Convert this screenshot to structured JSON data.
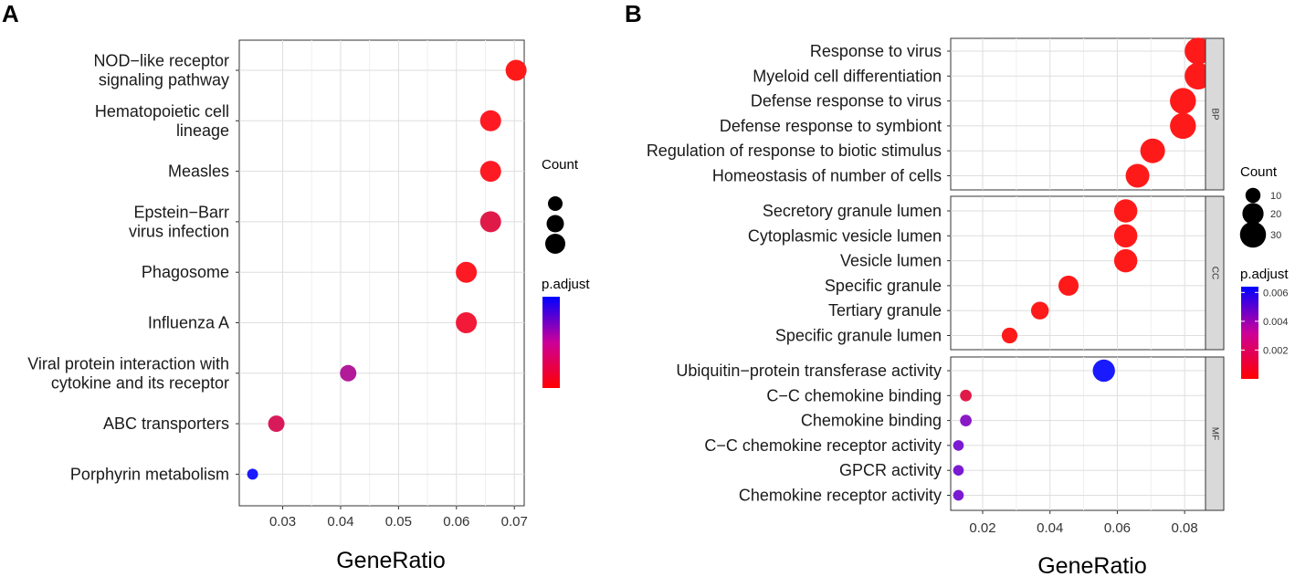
{
  "chart_data": [
    {
      "panel": "A",
      "type": "scatter",
      "xlabel": "GeneRatio",
      "ylabel": "",
      "xlim": [
        0.0225,
        0.0717
      ],
      "x_ticks": [
        "0.03",
        "0.04",
        "0.05",
        "0.06",
        "0.07"
      ],
      "x_tick_values": [
        0.03,
        0.04,
        0.05,
        0.06,
        0.07
      ],
      "grid": true,
      "points": [
        {
          "label": [
            "NOD−like receptor",
            "signaling pathway"
          ],
          "x": 0.0703,
          "count": 3,
          "padj": 0.0,
          "color": "#ff1a1a"
        },
        {
          "label": [
            "Hematopoietic cell",
            "lineage"
          ],
          "x": 0.0659,
          "count": 3,
          "padj": 0.0002,
          "color": "#fe1a22"
        },
        {
          "label": [
            "Measles"
          ],
          "x": 0.0659,
          "count": 3,
          "padj": 0.0002,
          "color": "#fe1a22"
        },
        {
          "label": [
            "Epstein−Barr",
            "virus infection"
          ],
          "x": 0.0659,
          "count": 3,
          "padj": 0.001,
          "color": "#e01a48"
        },
        {
          "label": [
            "Phagosome"
          ],
          "x": 0.0617,
          "count": 3,
          "padj": 0.0002,
          "color": "#fe1a22"
        },
        {
          "label": [
            "Influenza A"
          ],
          "x": 0.0617,
          "count": 3,
          "padj": 0.0006,
          "color": "#f21a38"
        },
        {
          "label": [
            "Viral protein interaction with",
            "cytokine and its receptor"
          ],
          "x": 0.0413,
          "count": 2,
          "padj": 0.003,
          "color": "#b21a9a"
        },
        {
          "label": [
            "ABC transporters"
          ],
          "x": 0.0289,
          "count": 2,
          "padj": 0.0012,
          "color": "#d81a5a"
        },
        {
          "label": [
            "Porphyrin metabolism"
          ],
          "x": 0.0248,
          "count": 1,
          "padj": 0.005,
          "color": "#1a1aff"
        }
      ],
      "legend": {
        "size_title": "Count",
        "color_title": "p.adjust",
        "color_low": "#ff0000",
        "color_high": "#0000ff",
        "placement": "right"
      }
    },
    {
      "panel": "B",
      "type": "scatter",
      "xlabel": "GeneRatio",
      "ylabel": "",
      "xlim": [
        0.0105,
        0.0862
      ],
      "x_ticks": [
        "0.02",
        "0.04",
        "0.06",
        "0.08"
      ],
      "x_tick_values": [
        0.02,
        0.04,
        0.06,
        0.08
      ],
      "grid": true,
      "facets": [
        {
          "name": "BP",
          "points": [
            {
              "label": "Response to virus",
              "x": 0.084,
              "count": 32,
              "padj": 0.0,
              "color": "#ff1a1a"
            },
            {
              "label": "Myeloid cell differentiation",
              "x": 0.084,
              "count": 32,
              "padj": 0.0,
              "color": "#ff1a1a"
            },
            {
              "label": "Defense response to virus",
              "x": 0.0795,
              "count": 30,
              "padj": 0.0,
              "color": "#ff1a1a"
            },
            {
              "label": "Defense response to symbiont",
              "x": 0.0795,
              "count": 30,
              "padj": 0.0,
              "color": "#ff1a1a"
            },
            {
              "label": "Regulation of response to biotic stimulus",
              "x": 0.0705,
              "count": 27,
              "padj": 0.0,
              "color": "#ff1a1a"
            },
            {
              "label": "Homeostasis of number of cells",
              "x": 0.066,
              "count": 25,
              "padj": 0.0,
              "color": "#ff1a1a"
            }
          ]
        },
        {
          "name": "CC",
          "points": [
            {
              "label": "Secretory granule lumen",
              "x": 0.0625,
              "count": 24,
              "padj": 0.0,
              "color": "#ff1a1a"
            },
            {
              "label": "Cytoplasmic vesicle lumen",
              "x": 0.0625,
              "count": 24,
              "padj": 0.0,
              "color": "#ff1a1a"
            },
            {
              "label": "Vesicle lumen",
              "x": 0.0625,
              "count": 24,
              "padj": 0.0,
              "color": "#ff1a1a"
            },
            {
              "label": "Specific granule",
              "x": 0.0455,
              "count": 18,
              "padj": 0.0,
              "color": "#ff1a1a"
            },
            {
              "label": "Tertiary granule",
              "x": 0.037,
              "count": 14,
              "padj": 0.0,
              "color": "#ff1a1a"
            },
            {
              "label": "Specific granule lumen",
              "x": 0.028,
              "count": 11,
              "padj": 0.0,
              "color": "#ff1a1a"
            }
          ]
        },
        {
          "name": "MF",
          "points": [
            {
              "label": "Ubiquitin−protein transferase activity",
              "x": 0.056,
              "count": 22,
              "padj": 0.0062,
              "color": "#1a1aff"
            },
            {
              "label": "C−C chemokine binding",
              "x": 0.015,
              "count": 6,
              "padj": 0.0015,
              "color": "#e01a48"
            },
            {
              "label": "Chemokine binding",
              "x": 0.015,
              "count": 6,
              "padj": 0.004,
              "color": "#8a1ac6"
            },
            {
              "label": "C−C chemokine receptor activity",
              "x": 0.0128,
              "count": 5,
              "padj": 0.0045,
              "color": "#7a1ad2"
            },
            {
              "label": "GPCR activity",
              "x": 0.0128,
              "count": 5,
              "padj": 0.0045,
              "color": "#7a1ad2"
            },
            {
              "label": "Chemokine receptor activity",
              "x": 0.0128,
              "count": 5,
              "padj": 0.0045,
              "color": "#7a1ad2"
            }
          ]
        }
      ],
      "legend": {
        "size_title": "Count",
        "size_breaks": [
          10,
          20,
          30
        ],
        "size_labels": [
          "10",
          "20",
          "30"
        ],
        "color_title": "p.adjust",
        "color_ticks": [
          "0.002",
          "0.004",
          "0.006"
        ],
        "color_tick_values": [
          0.002,
          0.004,
          0.006
        ],
        "color_range": [
          0.0,
          0.0064
        ],
        "color_low": "#ff0000",
        "color_high": "#0000ff",
        "placement": "right"
      }
    }
  ]
}
